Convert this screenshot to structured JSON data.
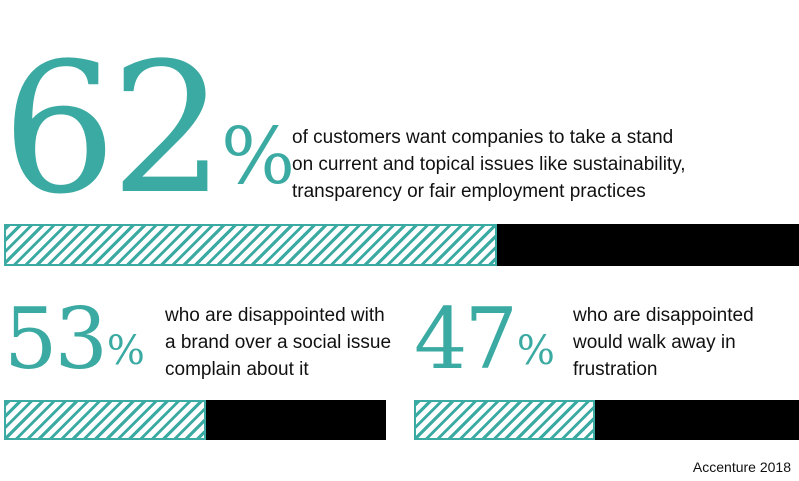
{
  "chart_data": {
    "type": "bar",
    "stats": [
      {
        "value": 62,
        "number": "62",
        "unit": "%",
        "description": [
          "of customers want companies to take a stand",
          "on current and topical issues like sustainability,",
          "transparency or fair employment practices"
        ]
      },
      {
        "value": 53,
        "number": "53",
        "unit": "%",
        "description": [
          "who are disappointed with",
          "a brand over a social issue",
          "complain about it"
        ]
      },
      {
        "value": 47,
        "number": "47",
        "unit": "%",
        "description": [
          "who are disappointed",
          "would walk away in",
          "frustration"
        ]
      }
    ],
    "source": "Accenture 2018",
    "colors": {
      "fill": "#3aaaa2",
      "remainder": "#000000"
    }
  }
}
